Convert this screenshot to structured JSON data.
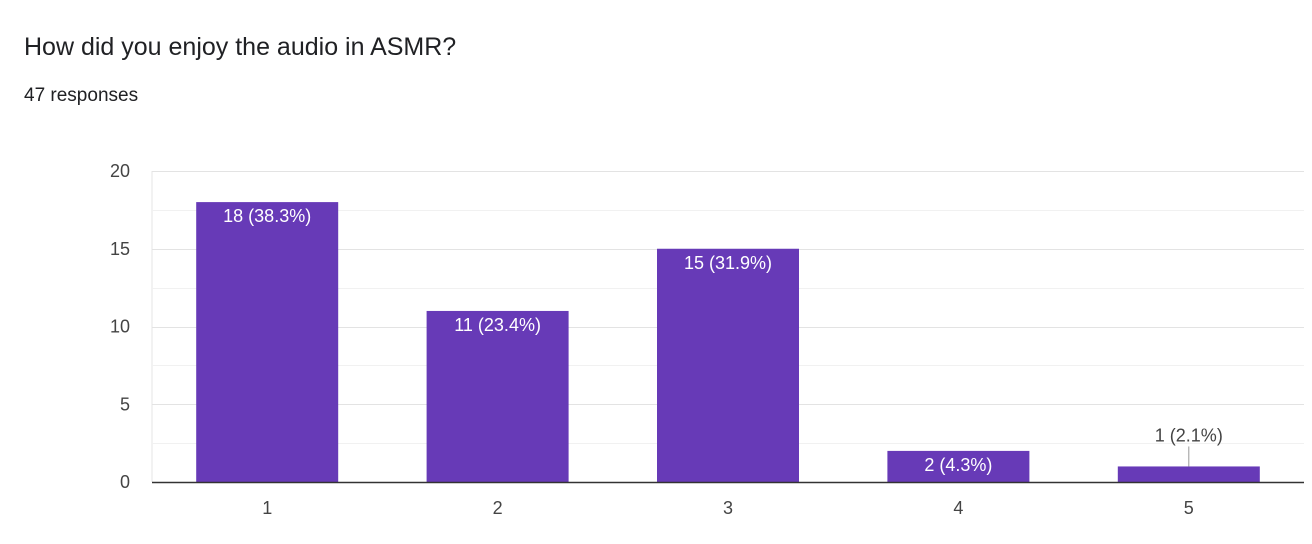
{
  "question": {
    "title": "How did you enjoy the audio in ASMR?",
    "responses": "47 responses"
  },
  "colors": {
    "bar": "#673ab7",
    "grid": "#e6e6e6",
    "axis": "#333333",
    "label_inside": "#ffffff",
    "label_outside": "#444444"
  },
  "chart_data": {
    "type": "bar",
    "title": "",
    "xlabel": "",
    "ylabel": "",
    "categories": [
      "1",
      "2",
      "3",
      "4",
      "5"
    ],
    "values": [
      18,
      11,
      15,
      2,
      1
    ],
    "data_labels": [
      "18 (38.3%)",
      "11 (23.4%)",
      "15 (31.9%)",
      "2 (4.3%)",
      "1 (2.1%)"
    ],
    "ylim": [
      0,
      20
    ],
    "yticks": [
      0,
      5,
      10,
      15,
      20
    ],
    "grid": true
  }
}
